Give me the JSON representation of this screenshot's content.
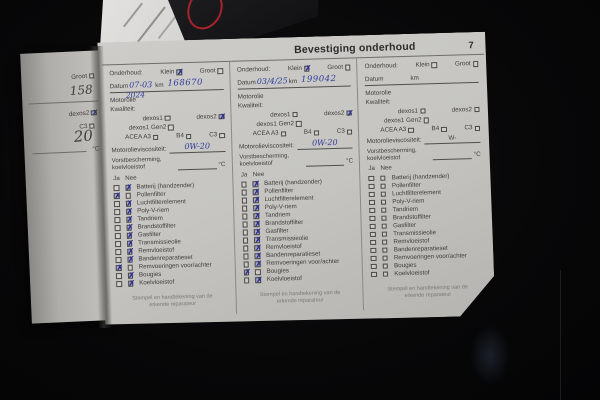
{
  "page": {
    "title": "Bevestiging onderhoud",
    "page_number": "7"
  },
  "labels": {
    "onderhoud": "Onderhoud:",
    "klein": "Klein",
    "groot": "Groot",
    "datum": "Datum",
    "km": "km",
    "motorolie": "Motorolie",
    "kwaliteit": "Kwaliteit:",
    "dexos1": "dexos1",
    "dexos2": "dexos2",
    "dexos1_gen2": "dexos1 Gen2",
    "acea_a3": "ACEA A3",
    "b4": "B4",
    "c3": "C3",
    "viscositeit": "Motorolieviscositeit:",
    "vorst_line1": "Vorstbescherming,",
    "vorst_line2": "koelvloeistof",
    "celsius": "°C",
    "ja": "Ja",
    "nee": "Nee",
    "w_prefix": "W-",
    "stamp_note": "Stempel en handtekening van de erkende reparateur"
  },
  "checklist_items": [
    "Batterij (handzender)",
    "Pollenfilter",
    "Luchtfilterelement",
    "Poly-V-riem",
    "Tandriem",
    "Brandstoffilter",
    "Gasfilter",
    "Transmissieolie",
    "Remvloeistof",
    "Bandenreparatieset",
    "Remvoeringen voor/achter",
    "Bougies",
    "Koelvloeistof"
  ],
  "records": [
    {
      "onderhoud_klein": true,
      "onderhoud_groot": false,
      "datum": "07-03",
      "datum_note": "2024",
      "km": "168670",
      "kwaliteit": {
        "dexos1": false,
        "dexos2": true,
        "dexos1_gen2": false,
        "acea_a3": false,
        "b4": false,
        "c3": false
      },
      "viscositeit": "0W-20",
      "checks": [
        "nee",
        "ja",
        "nee",
        "nee",
        "nee",
        "nee",
        "nee",
        "nee",
        "nee",
        "nee",
        "ja",
        "nee",
        "nee"
      ]
    },
    {
      "onderhoud_klein": true,
      "onderhoud_groot": false,
      "datum": "03/4/25",
      "datum_note": "",
      "km": "199042",
      "kwaliteit": {
        "dexos1": false,
        "dexos2": true,
        "dexos1_gen2": false,
        "acea_a3": false,
        "b4": false,
        "c3": false
      },
      "viscositeit": "0W-20",
      "checks": [
        "nee",
        "nee",
        "nee",
        "nee",
        "nee",
        "nee",
        "nee",
        "nee",
        "nee",
        "nee",
        "nee",
        "ja",
        "nee"
      ]
    },
    {
      "onderhoud_klein": false,
      "onderhoud_groot": false,
      "datum": "",
      "datum_note": "",
      "km": "",
      "kwaliteit": {
        "dexos1": false,
        "dexos2": false,
        "dexos1_gen2": false,
        "acea_a3": false,
        "b4": false,
        "c3": false
      },
      "viscositeit": "",
      "checks": [
        "",
        "",
        "",
        "",
        "",
        "",
        "",
        "",
        "",
        "",
        "",
        "",
        ""
      ]
    }
  ],
  "left_page_fragment": {
    "groot_label": "Groot",
    "handwritten_top": "158",
    "dexos2_label": "dexos2",
    "c3_label": "C3",
    "handwritten_mid": "20",
    "celsius": "°C"
  },
  "colors": {
    "paper": "#c8c7c3",
    "print_ink": "#3e3d3a",
    "handwriting_ink": "#2e3a9c",
    "check_mark": "#2c3193",
    "logo_red": "#a8232a",
    "background": "#070708"
  }
}
